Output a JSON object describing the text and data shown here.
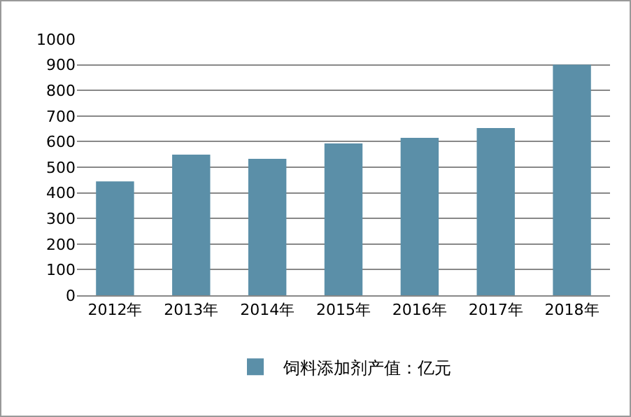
{
  "chart_data": {
    "type": "bar",
    "categories": [
      "2012年",
      "2013年",
      "2014年",
      "2015年",
      "2016年",
      "2017年",
      "2018年"
    ],
    "series": [
      {
        "name": "饲料添加剂产值：亿元",
        "color": "#5b8fa8",
        "values": [
          445,
          549,
          533,
          593,
          615,
          653,
          900
        ]
      }
    ],
    "ylim": [
      0,
      1000
    ],
    "yticks": [
      0,
      100,
      200,
      300,
      400,
      500,
      600,
      700,
      800,
      900,
      1000
    ],
    "grid": "y",
    "legend": "bottom"
  }
}
